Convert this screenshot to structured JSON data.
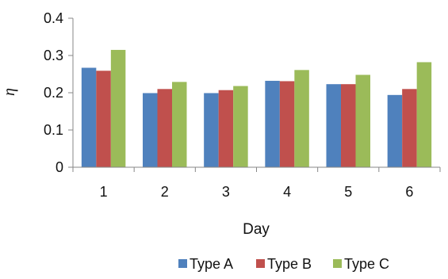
{
  "chart_data": {
    "type": "bar",
    "title": "",
    "xlabel": "Day",
    "ylabel": "η",
    "categories": [
      "1",
      "2",
      "3",
      "4",
      "5",
      "6"
    ],
    "ylim": [
      0,
      0.4
    ],
    "yticks": [
      "0",
      "0.1",
      "0.2",
      "0.3",
      "0.4"
    ],
    "grid": false,
    "legend_position": "bottom",
    "series": [
      {
        "name": "Type A",
        "color": "#4F81BD",
        "values": [
          0.267,
          0.199,
          0.199,
          0.232,
          0.223,
          0.194
        ]
      },
      {
        "name": "Type B",
        "color": "#C0504D",
        "values": [
          0.259,
          0.21,
          0.207,
          0.231,
          0.223,
          0.21
        ]
      },
      {
        "name": "Type C",
        "color": "#9BBB59",
        "values": [
          0.315,
          0.229,
          0.218,
          0.261,
          0.248,
          0.282
        ]
      }
    ]
  }
}
